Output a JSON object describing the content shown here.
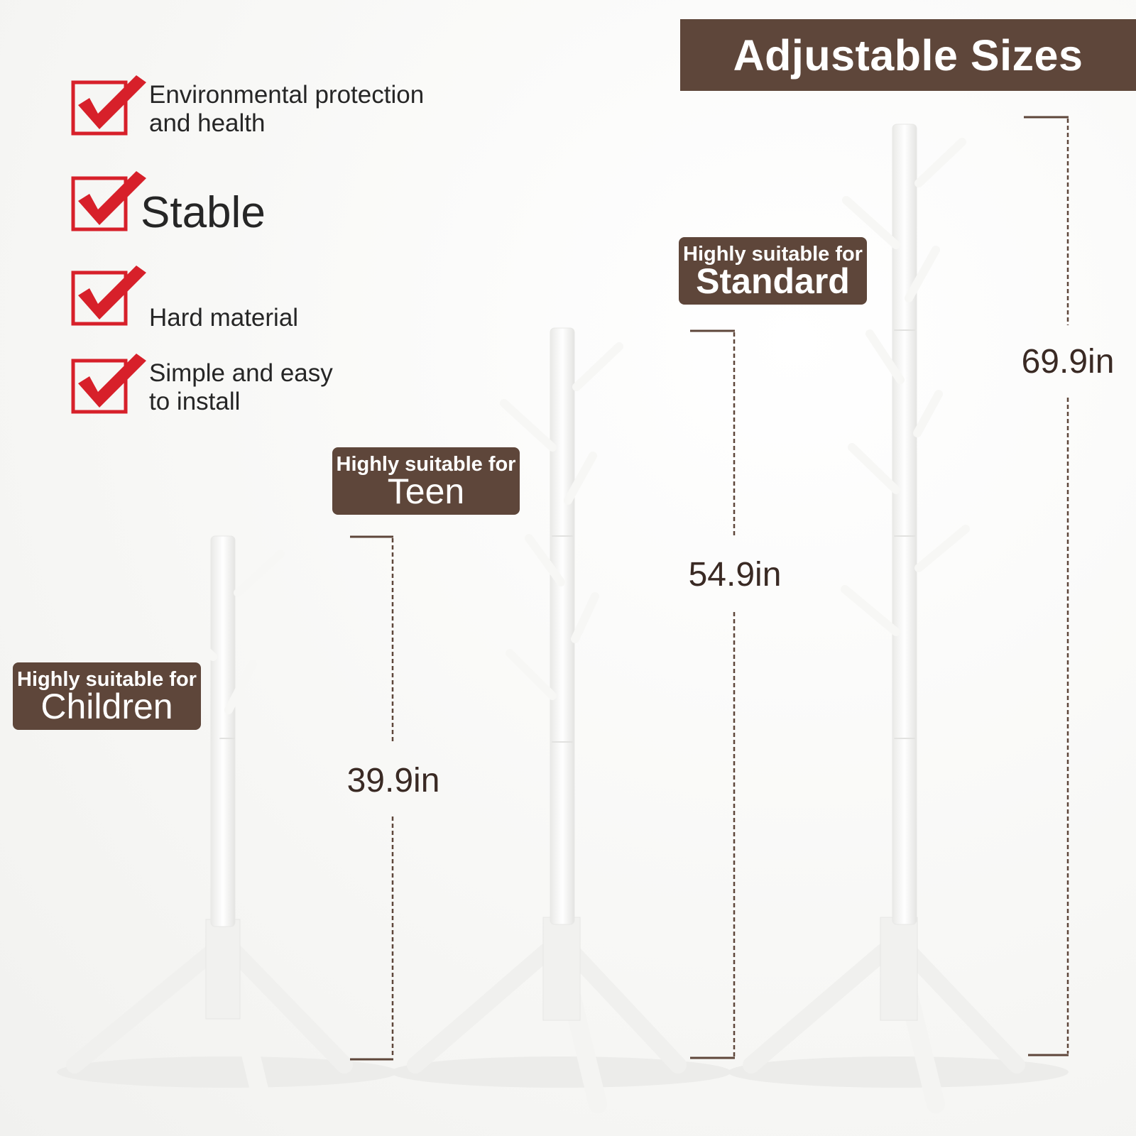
{
  "header": {
    "title": "Adjustable Sizes"
  },
  "features": [
    {
      "icon": "red-checkbox-icon",
      "line1": "Environmental protection",
      "line2": "and health"
    },
    {
      "icon": "red-checkbox-icon",
      "line1": "Stable"
    },
    {
      "icon": "red-checkbox-icon",
      "line1": "Hard material"
    },
    {
      "icon": "red-checkbox-icon",
      "line1": "Simple and easy",
      "line2": "to install"
    }
  ],
  "sizes": [
    {
      "prefix": "Highly suitable for",
      "label": "Children",
      "height": "39.9in"
    },
    {
      "prefix": "Highly suitable for",
      "label": "Teen",
      "height": "54.9in"
    },
    {
      "prefix": "Highly suitable for",
      "label": "Standard",
      "height": "69.9in"
    }
  ],
  "colors": {
    "banner": "#5e463a",
    "check_red": "#d7202a",
    "text_dark": "#262626",
    "dimension_line": "#5e463a",
    "rack_white": "#ffffff"
  }
}
